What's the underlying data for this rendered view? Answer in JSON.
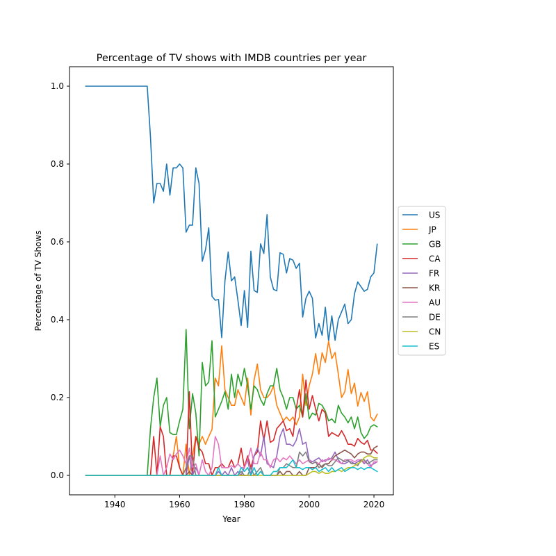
{
  "chart_data": {
    "type": "line",
    "title": "Percentage of TV shows with IMDB countries per year",
    "xlabel": "Year",
    "ylabel": "Percentage of TV Shows",
    "xlim": [
      1926,
      2026
    ],
    "ylim": [
      -0.05,
      1.05
    ],
    "xticks": [
      1940,
      1960,
      1980,
      2000,
      2020
    ],
    "yticks": [
      0.0,
      0.2,
      0.4,
      0.6,
      0.8,
      1.0
    ],
    "xtick_labels": [
      "1940",
      "1960",
      "1980",
      "2000",
      "2020"
    ],
    "ytick_labels": [
      "0.0",
      "0.2",
      "0.4",
      "0.6",
      "0.8",
      "1.0"
    ],
    "grid": false,
    "legend_position": "center-right (outside plot)",
    "x": [
      1931,
      1932,
      1933,
      1934,
      1935,
      1936,
      1937,
      1938,
      1939,
      1940,
      1941,
      1942,
      1943,
      1944,
      1945,
      1946,
      1947,
      1948,
      1949,
      1950,
      1951,
      1952,
      1953,
      1954,
      1955,
      1956,
      1957,
      1958,
      1959,
      1960,
      1961,
      1962,
      1963,
      1964,
      1965,
      1966,
      1967,
      1968,
      1969,
      1970,
      1971,
      1972,
      1973,
      1974,
      1975,
      1976,
      1977,
      1978,
      1979,
      1980,
      1981,
      1982,
      1983,
      1984,
      1985,
      1986,
      1987,
      1988,
      1989,
      1990,
      1991,
      1992,
      1993,
      1994,
      1995,
      1996,
      1997,
      1998,
      1999,
      2000,
      2001,
      2002,
      2003,
      2004,
      2005,
      2006,
      2007,
      2008,
      2009,
      2010,
      2011,
      2012,
      2013,
      2014,
      2015,
      2016,
      2017,
      2018,
      2019,
      2020,
      2021
    ],
    "series": [
      {
        "name": "US",
        "color": "#1f77b4",
        "values": [
          1,
          1,
          1,
          1,
          1,
          1,
          1,
          1,
          1,
          1,
          1,
          1,
          1,
          1,
          1,
          1,
          1,
          1,
          1,
          1,
          0.87,
          0.7,
          0.75,
          0.75,
          0.73,
          0.8,
          0.72,
          0.79,
          0.79,
          0.8,
          0.79,
          0.625,
          0.643,
          0.643,
          0.79,
          0.75,
          0.55,
          0.58,
          0.636,
          0.46,
          0.45,
          0.452,
          0.354,
          0.5,
          0.574,
          0.5,
          0.51,
          0.45,
          0.385,
          0.475,
          0.38,
          0.576,
          0.475,
          0.47,
          0.595,
          0.57,
          0.67,
          0.51,
          0.478,
          0.474,
          0.572,
          0.568,
          0.52,
          0.557,
          0.553,
          0.532,
          0.545,
          0.407,
          0.455,
          0.473,
          0.455,
          0.353,
          0.39,
          0.36,
          0.432,
          0.345,
          0.41,
          0.347,
          0.4,
          0.42,
          0.44,
          0.39,
          0.4,
          0.467,
          0.497,
          0.485,
          0.473,
          0.478,
          0.51,
          0.52,
          0.594
        ]
      },
      {
        "name": "JP",
        "color": "#ff7f0e",
        "values": [
          0,
          0,
          0,
          0,
          0,
          0,
          0,
          0,
          0,
          0,
          0,
          0,
          0,
          0,
          0,
          0,
          0,
          0,
          0,
          0,
          0,
          0,
          0,
          0,
          0,
          0,
          0,
          0.05,
          0.1,
          0.02,
          0,
          0.08,
          0,
          0.05,
          0.1,
          0.08,
          0.1,
          0.08,
          0.1,
          0.118,
          0.25,
          0.23,
          0.333,
          0.22,
          0.2,
          0.18,
          0.18,
          0.22,
          0.2,
          0.18,
          0.25,
          0.155,
          0.245,
          0.286,
          0.22,
          0.2,
          0.2,
          0.21,
          0.23,
          0.18,
          0.16,
          0.14,
          0.15,
          0.14,
          0.15,
          0.13,
          0.15,
          0.26,
          0.18,
          0.23,
          0.26,
          0.313,
          0.26,
          0.315,
          0.29,
          0.345,
          0.3,
          0.316,
          0.26,
          0.2,
          0.215,
          0.272,
          0.21,
          0.237,
          0.178,
          0.213,
          0.19,
          0.215,
          0.15,
          0.14,
          0.157
        ]
      },
      {
        "name": "GB",
        "color": "#2ca02c",
        "values": [
          0,
          0,
          0,
          0,
          0,
          0,
          0,
          0,
          0,
          0,
          0,
          0,
          0,
          0,
          0,
          0,
          0,
          0,
          0,
          0,
          0.12,
          0.2,
          0.25,
          0.125,
          0.18,
          0.2,
          0.11,
          0.105,
          0.105,
          0.14,
          0.17,
          0.375,
          0.12,
          0.21,
          0.16,
          0.05,
          0.29,
          0.23,
          0.24,
          0.346,
          0.15,
          0.17,
          0.19,
          0.215,
          0.17,
          0.26,
          0.2,
          0.26,
          0.23,
          0.275,
          0.23,
          0.17,
          0.23,
          0.22,
          0.195,
          0.18,
          0.21,
          0.23,
          0.23,
          0.275,
          0.22,
          0.2,
          0.17,
          0.2,
          0.2,
          0.17,
          0.18,
          0.15,
          0.21,
          0.145,
          0.16,
          0.155,
          0.185,
          0.18,
          0.165,
          0.14,
          0.145,
          0.135,
          0.18,
          0.16,
          0.15,
          0.135,
          0.15,
          0.12,
          0.15,
          0.11,
          0.095,
          0.105,
          0.125,
          0.13,
          0.125
        ]
      },
      {
        "name": "CA",
        "color": "#d62728",
        "values": [
          0,
          0,
          0,
          0,
          0,
          0,
          0,
          0,
          0,
          0,
          0,
          0,
          0,
          0,
          0,
          0,
          0,
          0,
          0,
          0,
          0,
          0.1,
          0,
          0.125,
          0.1,
          0,
          0,
          0.05,
          0.05,
          0.02,
          0,
          0,
          0.215,
          0,
          0.1,
          0.07,
          0.06,
          0.03,
          0.03,
          0,
          0.02,
          0.02,
          0.03,
          0.02,
          0.02,
          0.04,
          0.02,
          0.03,
          0.07,
          0.02,
          0.05,
          0.02,
          0.05,
          0.06,
          0.14,
          0.09,
          0.14,
          0.085,
          0.09,
          0.12,
          0.13,
          0.14,
          0.115,
          0.12,
          0.1,
          0.17,
          0.22,
          0.15,
          0.245,
          0.17,
          0.205,
          0.17,
          0.14,
          0.17,
          0.16,
          0.1,
          0.11,
          0.105,
          0.1,
          0.115,
          0.1,
          0.08,
          0.08,
          0.075,
          0.095,
          0.085,
          0.08,
          0.09,
          0.065,
          0.065,
          0.057
        ]
      },
      {
        "name": "FR",
        "color": "#9467bd",
        "values": [
          0,
          0,
          0,
          0,
          0,
          0,
          0,
          0,
          0,
          0,
          0,
          0,
          0,
          0,
          0,
          0,
          0,
          0,
          0,
          0,
          0,
          0,
          0,
          0,
          0,
          0,
          0,
          0,
          0,
          0,
          0,
          0,
          0.05,
          0,
          0.02,
          0,
          0,
          0,
          0,
          0,
          0,
          0.01,
          0,
          0.01,
          0,
          0.02,
          0,
          0.01,
          0,
          0.02,
          0.04,
          0,
          0.05,
          0.07,
          0.05,
          0.1,
          0.03,
          0.025,
          0.02,
          0.05,
          0.1,
          0.12,
          0.08,
          0.08,
          0.075,
          0.09,
          0.12,
          0.08,
          0.085,
          0.04,
          0.035,
          0.04,
          0.045,
          0.035,
          0.04,
          0.04,
          0.045,
          0.06,
          0.04,
          0.03,
          0.03,
          0.035,
          0.035,
          0.03,
          0.035,
          0.04,
          0.03,
          0.04,
          0.025,
          0.03,
          0.035
        ]
      },
      {
        "name": "KR",
        "color": "#8c564b",
        "values": [
          0,
          0,
          0,
          0,
          0,
          0,
          0,
          0,
          0,
          0,
          0,
          0,
          0,
          0,
          0,
          0,
          0,
          0,
          0,
          0,
          0,
          0,
          0,
          0,
          0,
          0,
          0,
          0,
          0,
          0,
          0,
          0,
          0.01,
          0,
          0,
          0,
          0,
          0,
          0,
          0,
          0,
          0,
          0,
          0,
          0,
          0,
          0,
          0,
          0,
          0,
          0,
          0,
          0,
          0,
          0.01,
          0,
          0,
          0,
          0,
          0,
          0.01,
          0,
          0.01,
          0.01,
          0,
          0,
          0.01,
          0,
          0,
          0.02,
          0.02,
          0.02,
          0.03,
          0.02,
          0.03,
          0.03,
          0.04,
          0.05,
          0.055,
          0.06,
          0.065,
          0.06,
          0.055,
          0.045,
          0.055,
          0.06,
          0.06,
          0.055,
          0.055,
          0.07,
          0.075
        ]
      },
      {
        "name": "AU",
        "color": "#e377c2",
        "values": [
          0,
          0,
          0,
          0,
          0,
          0,
          0,
          0,
          0,
          0,
          0,
          0,
          0,
          0,
          0,
          0,
          0,
          0,
          0,
          0,
          0,
          0,
          0,
          0.05,
          0,
          0.02,
          0.055,
          0.04,
          0.055,
          0.065,
          0.05,
          0.03,
          0.07,
          0.02,
          0.03,
          0,
          0.04,
          0.01,
          0,
          0.02,
          0.1,
          0.08,
          0.02,
          0.02,
          0.02,
          0.025,
          0.02,
          0.03,
          0.02,
          0.02,
          0.04,
          0.07,
          0.03,
          0.03,
          0.06,
          0.04,
          0.04,
          0.02,
          0.04,
          0.045,
          0.035,
          0.045,
          0.04,
          0.05,
          0.04,
          0.03,
          0.04,
          0.03,
          0.035,
          0.04,
          0.03,
          0.035,
          0.03,
          0.04,
          0.035,
          0.045,
          0.04,
          0.04,
          0.035,
          0.03,
          0.04,
          0.04,
          0.04,
          0.035,
          0.04,
          0.04,
          0.035,
          0.03,
          0.02,
          0.035,
          0.035
        ]
      },
      {
        "name": "DE",
        "color": "#7f7f7f",
        "values": [
          0,
          0,
          0,
          0,
          0,
          0,
          0,
          0,
          0,
          0,
          0,
          0,
          0,
          0,
          0,
          0,
          0,
          0,
          0,
          0,
          0,
          0,
          0,
          0,
          0,
          0,
          0,
          0,
          0,
          0,
          0,
          0.02,
          0.05,
          0.05,
          0,
          0,
          0,
          0,
          0,
          0,
          0,
          0,
          0,
          0,
          0,
          0,
          0,
          0,
          0.01,
          0,
          0,
          0.02,
          0,
          0.01,
          0.02,
          0,
          0,
          0,
          0,
          0,
          0.02,
          0.02,
          0.03,
          0.025,
          0.02,
          0.02,
          0.06,
          0.05,
          0.06,
          0.035,
          0.03,
          0.035,
          0.02,
          0.025,
          0.03,
          0.025,
          0.025,
          0.035,
          0.045,
          0.04,
          0.035,
          0.04,
          0.03,
          0.03,
          0.025,
          0.04,
          0.04,
          0.03,
          0.035,
          0.04,
          0.04
        ]
      },
      {
        "name": "CN",
        "color": "#bcbd22",
        "values": [
          0,
          0,
          0,
          0,
          0,
          0,
          0,
          0,
          0,
          0,
          0,
          0,
          0,
          0,
          0,
          0,
          0,
          0,
          0,
          0,
          0,
          0,
          0,
          0,
          0,
          0,
          0,
          0,
          0,
          0,
          0,
          0,
          0,
          0,
          0,
          0,
          0,
          0,
          0,
          0,
          0,
          0,
          0,
          0,
          0,
          0,
          0,
          0,
          0,
          0,
          0,
          0,
          0,
          0,
          0,
          0,
          0,
          0,
          0,
          0,
          0,
          0,
          0,
          0,
          0,
          0,
          0,
          0,
          0,
          0.005,
          0.01,
          0.01,
          0.005,
          0.01,
          0.005,
          0.005,
          0.01,
          0.01,
          0.015,
          0.01,
          0.015,
          0.02,
          0.02,
          0.025,
          0.03,
          0.035,
          0.045,
          0.05,
          0.05,
          0.045,
          0.045
        ]
      },
      {
        "name": "ES",
        "color": "#17becf",
        "values": [
          0,
          0,
          0,
          0,
          0,
          0,
          0,
          0,
          0,
          0,
          0,
          0,
          0,
          0,
          0,
          0,
          0,
          0,
          0,
          0,
          0,
          0,
          0,
          0,
          0,
          0,
          0,
          0,
          0,
          0,
          0,
          0,
          0,
          0,
          0,
          0,
          0,
          0,
          0,
          0,
          0,
          0.02,
          0,
          0,
          0,
          0,
          0,
          0,
          0.02,
          0.01,
          0.02,
          0,
          0.02,
          0,
          0.01,
          0,
          0,
          0,
          0.01,
          0.01,
          0.02,
          0.02,
          0.02,
          0.03,
          0.04,
          0.02,
          0.02,
          0.015,
          0.02,
          0.02,
          0.015,
          0.02,
          0.01,
          0.015,
          0.02,
          0.01,
          0.02,
          0.01,
          0.015,
          0.02,
          0.01,
          0.015,
          0.02,
          0.02,
          0.015,
          0.02,
          0.015,
          0.02,
          0.02,
          0.015,
          0.01
        ]
      }
    ]
  }
}
